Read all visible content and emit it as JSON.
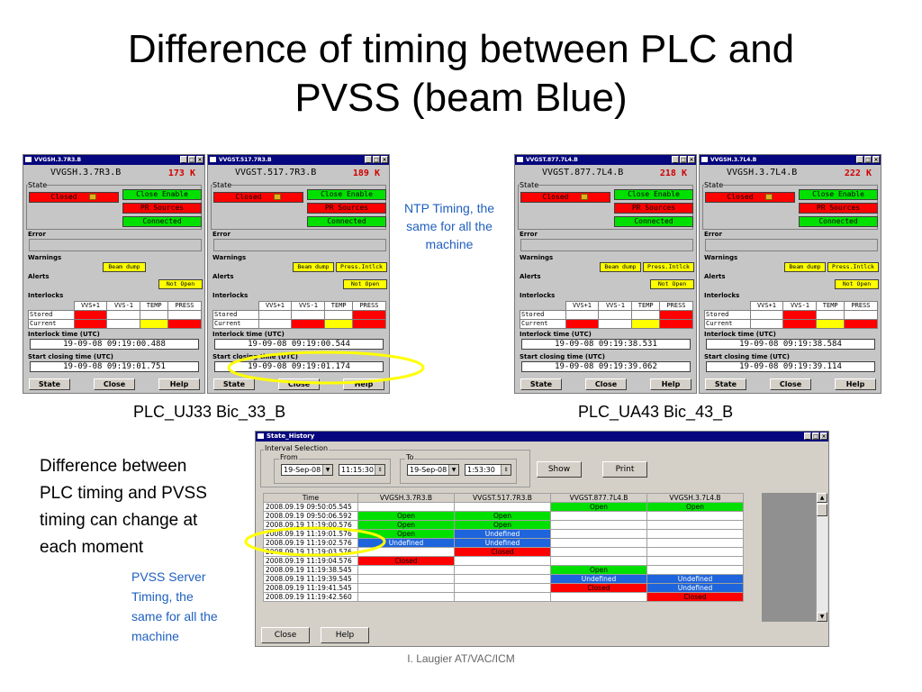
{
  "slide": {
    "title_line1": "Difference of timing between PLC and",
    "title_line2": "PVSS (beam Blue)",
    "footer": "I. Laugier AT/VAC/ICM"
  },
  "captions": {
    "left_group": "PLC_UJ33 Bic_33_B",
    "right_group": "PLC_UA43 Bic_43_B"
  },
  "notes": {
    "ntp": [
      "NTP Timing, the",
      "same for all the",
      "machine"
    ],
    "difference": [
      "Difference between",
      "PLC timing and PVSS",
      "timing can change at",
      "each moment"
    ],
    "pvss": [
      "PVSS Server",
      "Timing, the",
      "same for all the",
      "machine"
    ]
  },
  "panel_labels": {
    "state": "State",
    "error": "Error",
    "warnings": "Warnings",
    "alerts": "Alerts",
    "interlocks": "Interlocks",
    "interlock_time": "Interlock time (UTC)",
    "start_closing": "Start closing time (UTC)",
    "cols": [
      "VVS+1",
      "VVS-1",
      "TEMP",
      "PRESS"
    ],
    "stored": "Stored",
    "current": "Current",
    "btn_state": "State",
    "btn_close": "Close",
    "btn_help": "Help",
    "min": "_",
    "max": "□",
    "close_x": "×"
  },
  "panels": [
    {
      "title": "VVGSH.3.7R3.B",
      "name": "VVGSH.3.7R3.B",
      "temp": "173 K",
      "state": "Closed",
      "close_enable": "Close Enable",
      "pr_sources": "PR Sources",
      "connected": "Connected",
      "warnings": [
        "Beam dump"
      ],
      "alert": "Not Open",
      "stored": [
        "red",
        "",
        "",
        ""
      ],
      "current": [
        "red",
        "",
        "yellow",
        "red"
      ],
      "interlock_time": "19-09-08 09:19:00.488",
      "start_closing": "19-09-08 09:19:01.751"
    },
    {
      "title": "VVGST.517.7R3.B",
      "name": "VVGST.517.7R3.B",
      "temp": "189 K",
      "state": "Closed",
      "close_enable": "Close Enable",
      "pr_sources": "PR Sources",
      "connected": "Connected",
      "warnings": [
        "Beam dump",
        "Press.Intlck"
      ],
      "alert": "Not Open",
      "stored": [
        "",
        "",
        "",
        "red"
      ],
      "current": [
        "",
        "red",
        "yellow",
        "red"
      ],
      "interlock_time": "19-09-08 09:19:00.544",
      "start_closing": "19-09-08 09:19:01.174"
    },
    {
      "title": "VVGST.877.7L4.B",
      "name": "VVGST.877.7L4.B",
      "temp": "218 K",
      "state": "Closed",
      "close_enable": "Close Enable",
      "pr_sources": "PR Sources",
      "connected": "Connected",
      "warnings": [
        "Beam dump",
        "Press.Intlck"
      ],
      "alert": "Not Open",
      "stored": [
        "",
        "",
        "",
        "red"
      ],
      "current": [
        "red",
        "",
        "yellow",
        "red"
      ],
      "interlock_time": "19-09-08 09:19:38.531",
      "start_closing": "19-09-08 09:19:39.062"
    },
    {
      "title": "VVGSH.3.7L4.B",
      "name": "VVGSH.3.7L4.B",
      "temp": "222 K",
      "state": "Closed",
      "close_enable": "Close Enable",
      "pr_sources": "PR Sources",
      "connected": "Connected",
      "warnings": [
        "Beam dump",
        "Press.Intlck"
      ],
      "alert": "Not Open",
      "stored": [
        "",
        "red",
        "",
        ""
      ],
      "current": [
        "",
        "red",
        "yellow",
        "red"
      ],
      "interlock_time": "19-09-08 09:19:38.584",
      "start_closing": "19-09-08 09:19:39.114"
    }
  ],
  "history": {
    "title": "State_History",
    "interval_label": "Interval Selection",
    "from_label": "From",
    "to_label": "To",
    "from_date": "19-Sep-08",
    "from_time": "11:15:30",
    "to_date": "19-Sep-08",
    "to_time": "1:53:30",
    "show": "Show",
    "print": "Print",
    "close": "Close",
    "help": "Help",
    "columns": [
      "Time",
      "VVGSH.3.7R3.B",
      "VVGST.517.7R3.B",
      "VVGST.877.7L4.B",
      "VVGSH.3.7L4.B"
    ],
    "rows": [
      {
        "time": "2008.09.19 09:50:05.545",
        "cells": [
          [
            "",
            ""
          ],
          [
            "",
            ""
          ],
          [
            "Open",
            "green"
          ],
          [
            "Open",
            "green"
          ]
        ]
      },
      {
        "time": "2008.09.19 09:50:06.592",
        "cells": [
          [
            "Open",
            "green"
          ],
          [
            "Open",
            "green"
          ],
          [
            "",
            ""
          ],
          [
            "",
            ""
          ]
        ]
      },
      {
        "time": "2008.09.19 11:19:00.576",
        "cells": [
          [
            "Open",
            "green"
          ],
          [
            "Open",
            "green"
          ],
          [
            "",
            ""
          ],
          [
            "",
            ""
          ]
        ]
      },
      {
        "time": "2008.09.19 11:19:01.576",
        "cells": [
          [
            "Open",
            "green"
          ],
          [
            "Undefined",
            "blue"
          ],
          [
            "",
            ""
          ],
          [
            "",
            ""
          ]
        ]
      },
      {
        "time": "2008.09.19 11:19:02.576",
        "cells": [
          [
            "Undefined",
            "blue"
          ],
          [
            "Undefined",
            "blue"
          ],
          [
            "",
            ""
          ],
          [
            "",
            ""
          ]
        ]
      },
      {
        "time": "2008.09.19 11:19:03.576",
        "cells": [
          [
            "",
            ""
          ],
          [
            "Closed",
            "red"
          ],
          [
            "",
            ""
          ],
          [
            "",
            ""
          ]
        ]
      },
      {
        "time": "2008.09.19 11:19:04.576",
        "cells": [
          [
            "Closed",
            "red"
          ],
          [
            "",
            ""
          ],
          [
            "",
            ""
          ],
          [
            "",
            ""
          ]
        ]
      },
      {
        "time": "2008.09.19 11:19:38.545",
        "cells": [
          [
            "",
            ""
          ],
          [
            "",
            ""
          ],
          [
            "Open",
            "green"
          ],
          [
            "",
            ""
          ]
        ]
      },
      {
        "time": "2008.09.19 11:19:39.545",
        "cells": [
          [
            "",
            ""
          ],
          [
            "",
            ""
          ],
          [
            "Undefined",
            "blue"
          ],
          [
            "Undefined",
            "blue"
          ]
        ]
      },
      {
        "time": "2008.09.19 11:19:41.545",
        "cells": [
          [
            "",
            ""
          ],
          [
            "",
            ""
          ],
          [
            "Closed",
            "red"
          ],
          [
            "Undefined",
            "blue"
          ]
        ]
      },
      {
        "time": "2008.09.19 11:19:42.560",
        "cells": [
          [
            "",
            ""
          ],
          [
            "",
            ""
          ],
          [
            "",
            ""
          ],
          [
            "Closed",
            "red"
          ]
        ]
      }
    ]
  }
}
